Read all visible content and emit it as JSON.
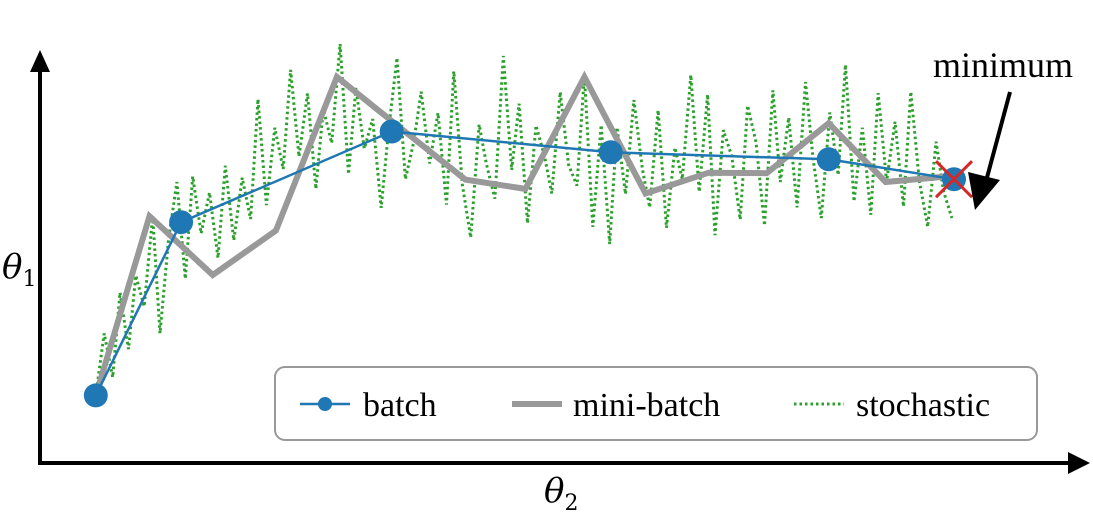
{
  "chart_data": {
    "type": "line",
    "title": "",
    "xlabel": {
      "symbol": "θ",
      "subscript": "2"
    },
    "ylabel": {
      "symbol": "θ",
      "subscript": "1"
    },
    "xlim": [
      0,
      100
    ],
    "ylim": [
      0,
      100
    ],
    "grid": false,
    "legend_position": "bottom-right",
    "series": [
      {
        "name": "batch",
        "style": "solid-with-markers",
        "color": "#1f77b4",
        "x": [
          5.3,
          13.4,
          33.4,
          54.2,
          74.9,
          86.8
        ],
        "y": [
          14.6,
          52.0,
          71.6,
          67.1,
          65.6,
          61.3
        ]
      },
      {
        "name": "mini-batch",
        "style": "thick-solid",
        "color": "#999999",
        "x": [
          5.3,
          10.4,
          16.4,
          22.4,
          28.2,
          33.7,
          40.4,
          46.1,
          51.7,
          57.5,
          63.5,
          69.0,
          74.9,
          80.3,
          86.8
        ],
        "y": [
          14.6,
          53.3,
          40.6,
          50.2,
          83.4,
          73.3,
          61.2,
          59.2,
          83.4,
          58.2,
          62.7,
          62.6,
          73.4,
          60.7,
          62.0
        ]
      },
      {
        "name": "stochastic",
        "style": "dotted",
        "color": "#2ca02c",
        "x": [
          5.3,
          6.1,
          6.9,
          7.6,
          8.4,
          9.1,
          9.9,
          10.7,
          11.4,
          12.2,
          13.0,
          13.8,
          14.5,
          15.3,
          16.1,
          16.9,
          17.6,
          18.4,
          19.2,
          20.0,
          20.7,
          21.5,
          22.3,
          23.1,
          23.8,
          24.6,
          25.4,
          26.2,
          26.9,
          27.7,
          28.5,
          29.3,
          30.0,
          30.8,
          31.6,
          32.4,
          33.1,
          33.9,
          34.7,
          35.5,
          36.2,
          37.0,
          37.8,
          38.6,
          39.3,
          40.1,
          40.9,
          41.7,
          42.4,
          43.2,
          44.0,
          44.8,
          45.5,
          46.3,
          47.1,
          47.9,
          48.6,
          49.4,
          50.2,
          51.0,
          51.7,
          52.5,
          53.3,
          54.1,
          54.8,
          55.6,
          56.4,
          57.2,
          57.9,
          58.7,
          59.5,
          60.3,
          61.0,
          61.8,
          62.6,
          63.4,
          64.1,
          64.9,
          65.7,
          66.5,
          67.2,
          68.0,
          68.8,
          69.6,
          70.3,
          71.1,
          71.9,
          72.7,
          73.4,
          74.2,
          75.0,
          75.8,
          76.5,
          77.3,
          78.1,
          78.9,
          79.6,
          80.4,
          81.2,
          82.0,
          82.7,
          83.5,
          84.3,
          85.1,
          85.8,
          86.6
        ],
        "y": [
          14.6,
          28.0,
          18.5,
          36.8,
          24.6,
          40.5,
          33.8,
          53.3,
          28.0,
          48.2,
          60.7,
          39.8,
          61.9,
          49.6,
          58.4,
          44.3,
          64.2,
          48.1,
          61.6,
          52.7,
          78.6,
          55.7,
          72.4,
          63.5,
          84.9,
          66.2,
          79.8,
          59.2,
          76.5,
          69.1,
          90.5,
          62.4,
          81.0,
          67.9,
          74.3,
          55.1,
          71.8,
          87.5,
          61.3,
          69.4,
          80.2,
          64.7,
          75.6,
          55.8,
          84.6,
          60.2,
          48.7,
          73.1,
          64.5,
          57.1,
          87.9,
          63.3,
          77.6,
          51.8,
          72.9,
          66.4,
          58.2,
          80.1,
          64.4,
          59.9,
          83.8,
          51.0,
          73.0,
          47.3,
          72.5,
          58.1,
          78.4,
          63.6,
          55.2,
          76.2,
          50.8,
          68.1,
          61.3,
          83.8,
          58.6,
          79.6,
          49.2,
          71.9,
          66.2,
          52.6,
          77.2,
          69.3,
          51.3,
          80.5,
          60.7,
          74.6,
          55.2,
          82.3,
          66.1,
          52.9,
          75.7,
          62.2,
          86.0,
          56.5,
          72.4,
          53.6,
          79.9,
          60.8,
          73.7,
          55.4,
          80.2,
          61.0,
          51.0,
          69.4,
          58.7,
          52.9
        ]
      }
    ],
    "annotations": [
      {
        "text": "minimum",
        "x": 86.8,
        "y": 61.3,
        "marker": "x",
        "marker_color": "#d62728"
      }
    ]
  },
  "legend": {
    "items": [
      "batch",
      "mini-batch",
      "stochastic"
    ]
  }
}
